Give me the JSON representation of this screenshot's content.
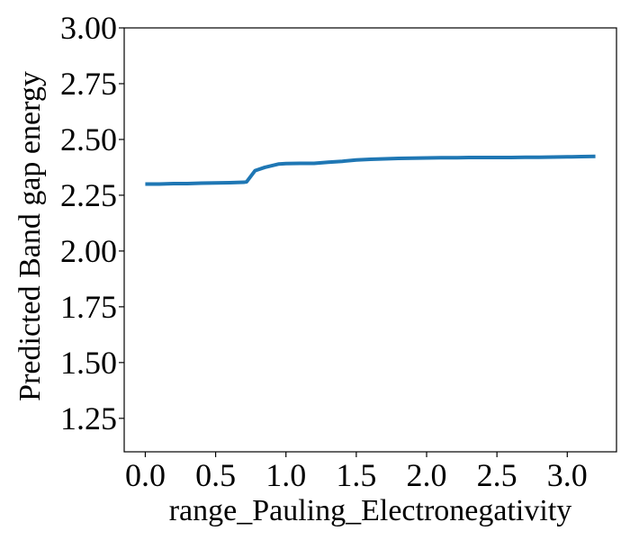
{
  "chart_data": {
    "type": "line",
    "title": "",
    "xlabel": "range_Pauling_Electronegativity",
    "ylabel": "Predicted Band gap energy",
    "xlim": [
      -0.15,
      3.35
    ],
    "ylim": [
      1.1,
      3.0
    ],
    "xticks": [
      0.0,
      0.5,
      1.0,
      1.5,
      2.0,
      2.5,
      3.0
    ],
    "xtick_labels": [
      "0.0",
      "0.5",
      "1.0",
      "1.5",
      "2.0",
      "2.5",
      "3.0"
    ],
    "yticks": [
      1.25,
      1.5,
      1.75,
      2.0,
      2.25,
      2.5,
      2.75,
      3.0
    ],
    "ytick_labels": [
      "1.25",
      "1.50",
      "1.75",
      "2.00",
      "2.25",
      "2.50",
      "2.75",
      "3.00"
    ],
    "grid": false,
    "legend": "none",
    "series": [
      {
        "color": "#1f77b4",
        "x": [
          0.0,
          0.1,
          0.2,
          0.3,
          0.4,
          0.5,
          0.6,
          0.7,
          0.72,
          0.78,
          0.85,
          0.95,
          1.0,
          1.1,
          1.2,
          1.3,
          1.4,
          1.5,
          1.6,
          1.7,
          1.8,
          1.9,
          2.0,
          2.1,
          2.2,
          2.3,
          2.4,
          2.5,
          2.6,
          2.7,
          2.8,
          2.9,
          3.0,
          3.1,
          3.2
        ],
        "y": [
          2.3,
          2.3,
          2.302,
          2.302,
          2.304,
          2.305,
          2.306,
          2.308,
          2.31,
          2.36,
          2.375,
          2.39,
          2.392,
          2.393,
          2.393,
          2.398,
          2.402,
          2.408,
          2.411,
          2.413,
          2.415,
          2.416,
          2.417,
          2.418,
          2.418,
          2.419,
          2.419,
          2.419,
          2.419,
          2.42,
          2.42,
          2.421,
          2.422,
          2.423,
          2.424
        ]
      }
    ]
  }
}
